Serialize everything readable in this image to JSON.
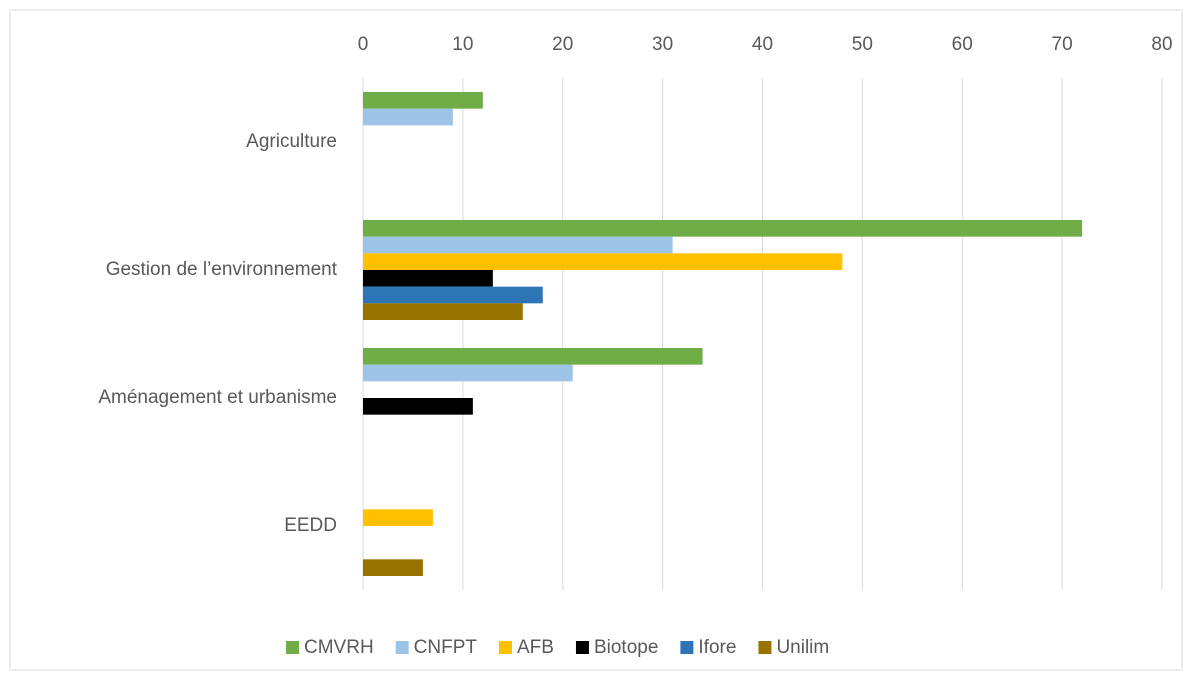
{
  "chart_data": {
    "type": "bar",
    "orientation": "horizontal",
    "categories": [
      "Agriculture",
      "Gestion de l’environnement",
      "Aménagement et urbanisme",
      "EEDD"
    ],
    "series": [
      {
        "name": "CMVRH",
        "color": "#70ad47",
        "values": [
          12,
          72,
          34,
          null
        ]
      },
      {
        "name": "CNFPT",
        "color": "#9dc3e6",
        "values": [
          9,
          31,
          21,
          null
        ]
      },
      {
        "name": "AFB",
        "color": "#ffc000",
        "values": [
          null,
          48,
          null,
          7
        ]
      },
      {
        "name": "Biotope",
        "color": "#000000",
        "values": [
          null,
          13,
          11,
          null
        ]
      },
      {
        "name": "Ifore",
        "color": "#2e75b6",
        "values": [
          null,
          18,
          null,
          null
        ]
      },
      {
        "name": "Unilim",
        "color": "#997300",
        "values": [
          null,
          16,
          null,
          6
        ]
      }
    ],
    "xlim": [
      0,
      80
    ],
    "xticks": [
      0,
      10,
      20,
      30,
      40,
      50,
      60,
      70,
      80
    ],
    "grid": true,
    "legend": "bottom"
  }
}
